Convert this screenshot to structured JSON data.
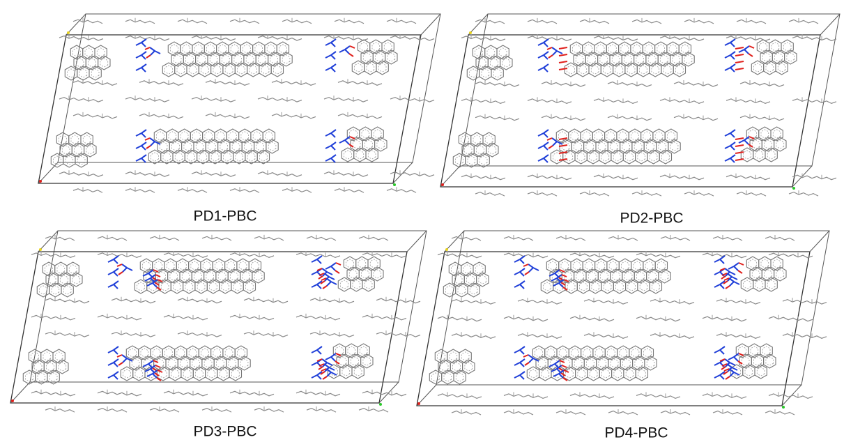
{
  "panels": [
    {
      "label": "PD1-PBC"
    },
    {
      "label": "PD2-PBC"
    },
    {
      "label": "PD3-PBC"
    },
    {
      "label": "PD4-PBC"
    }
  ]
}
